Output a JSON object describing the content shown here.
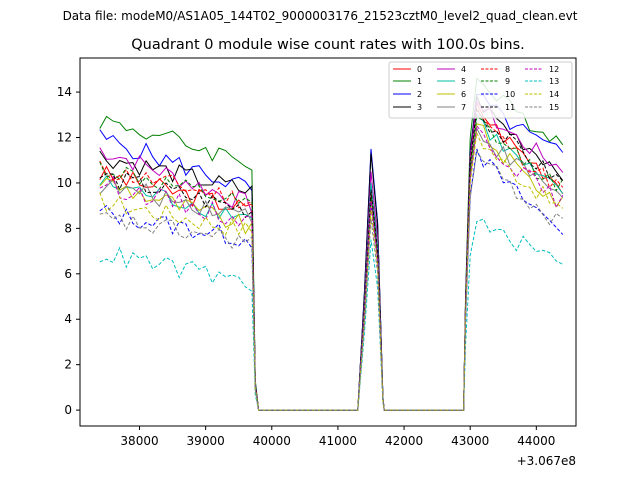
{
  "chart_data": {
    "type": "line",
    "suptitle": "Data file: modeM0/AS1A05_144T02_9000003176_21523cztM0_level2_quad_clean.evt",
    "title": "Quadrant 0 module wise count rates with 100.0s bins.",
    "xlabel": "",
    "ylabel": "",
    "x_offset_label": "+3.067e8",
    "xlim": [
      37100,
      44600
    ],
    "ylim": [
      -0.7,
      15.5
    ],
    "xticks": [
      38000,
      39000,
      40000,
      41000,
      42000,
      43000,
      44000
    ],
    "yticks": [
      0,
      2,
      4,
      6,
      8,
      10,
      12,
      14
    ],
    "legend_position": "top-right",
    "segments": [
      {
        "start": 37400,
        "end": 39700
      },
      {
        "start": 41300,
        "end": 41700
      },
      {
        "start": 42900,
        "end": 44400
      }
    ],
    "bin_size_s": 100,
    "series": [
      {
        "name": "0",
        "color": "#ff0000",
        "dash": "solid",
        "start_level": 10.4,
        "end_level": 8.8,
        "gap_peak": 9.8,
        "second_peak": 13.5,
        "tail_level": 9.9
      },
      {
        "name": "1",
        "color": "#008000",
        "dash": "solid",
        "start_level": 12.8,
        "end_level": 10.9,
        "gap_peak": 11.4,
        "second_peak": 14.6,
        "tail_level": 11.8
      },
      {
        "name": "2",
        "color": "#0000ff",
        "dash": "solid",
        "start_level": 12.0,
        "end_level": 9.7,
        "gap_peak": 11.5,
        "second_peak": 13.9,
        "tail_level": 11.2
      },
      {
        "name": "3",
        "color": "#000000",
        "dash": "solid",
        "start_level": 11.2,
        "end_level": 9.6,
        "gap_peak": 11.3,
        "second_peak": 13.8,
        "tail_level": 10.5
      },
      {
        "name": "4",
        "color": "#bf00bf",
        "dash": "solid",
        "start_level": 11.5,
        "end_level": 9.0,
        "gap_peak": 10.5,
        "second_peak": 13.6,
        "tail_level": 10.6
      },
      {
        "name": "5",
        "color": "#00bfa0",
        "dash": "solid",
        "start_level": 10.0,
        "end_level": 8.5,
        "gap_peak": 10.0,
        "second_peak": 13.0,
        "tail_level": 9.4
      },
      {
        "name": "6",
        "color": "#bfbf00",
        "dash": "solid",
        "start_level": 10.1,
        "end_level": 8.0,
        "gap_peak": 9.3,
        "second_peak": 12.6,
        "tail_level": 9.0
      },
      {
        "name": "7",
        "color": "#808080",
        "dash": "solid",
        "start_level": 9.9,
        "end_level": 8.6,
        "gap_peak": 9.5,
        "second_peak": 12.4,
        "tail_level": 9.5
      },
      {
        "name": "8",
        "color": "#ff0000",
        "dash": "dashed",
        "start_level": 10.6,
        "end_level": 9.2,
        "gap_peak": 9.6,
        "second_peak": 13.2,
        "tail_level": 9.7
      },
      {
        "name": "9",
        "color": "#008000",
        "dash": "dashed",
        "start_level": 10.7,
        "end_level": 8.9,
        "gap_peak": 9.4,
        "second_peak": 12.9,
        "tail_level": 9.8
      },
      {
        "name": "10",
        "color": "#0000ff",
        "dash": "dashed",
        "start_level": 8.7,
        "end_level": 7.5,
        "gap_peak": 8.9,
        "second_peak": 11.5,
        "tail_level": 7.9
      },
      {
        "name": "11",
        "color": "#000000",
        "dash": "dashed",
        "start_level": 10.3,
        "end_level": 8.8,
        "gap_peak": 9.7,
        "second_peak": 13.3,
        "tail_level": 10.0
      },
      {
        "name": "12",
        "color": "#bf00bf",
        "dash": "dashed",
        "start_level": 10.0,
        "end_level": 8.3,
        "gap_peak": 9.2,
        "second_peak": 12.5,
        "tail_level": 9.1
      },
      {
        "name": "13",
        "color": "#00bfbf",
        "dash": "dashed",
        "start_level": 6.9,
        "end_level": 5.6,
        "gap_peak": 7.5,
        "second_peak": 8.3,
        "tail_level": 6.6
      },
      {
        "name": "14",
        "color": "#bfbf00",
        "dash": "dashed",
        "start_level": 9.2,
        "end_level": 7.9,
        "gap_peak": 8.8,
        "second_peak": 12.2,
        "tail_level": 8.8
      },
      {
        "name": "15",
        "color": "#808080",
        "dash": "dashed",
        "start_level": 8.4,
        "end_level": 7.4,
        "gap_peak": 8.4,
        "second_peak": 11.4,
        "tail_level": 8.1
      }
    ]
  }
}
